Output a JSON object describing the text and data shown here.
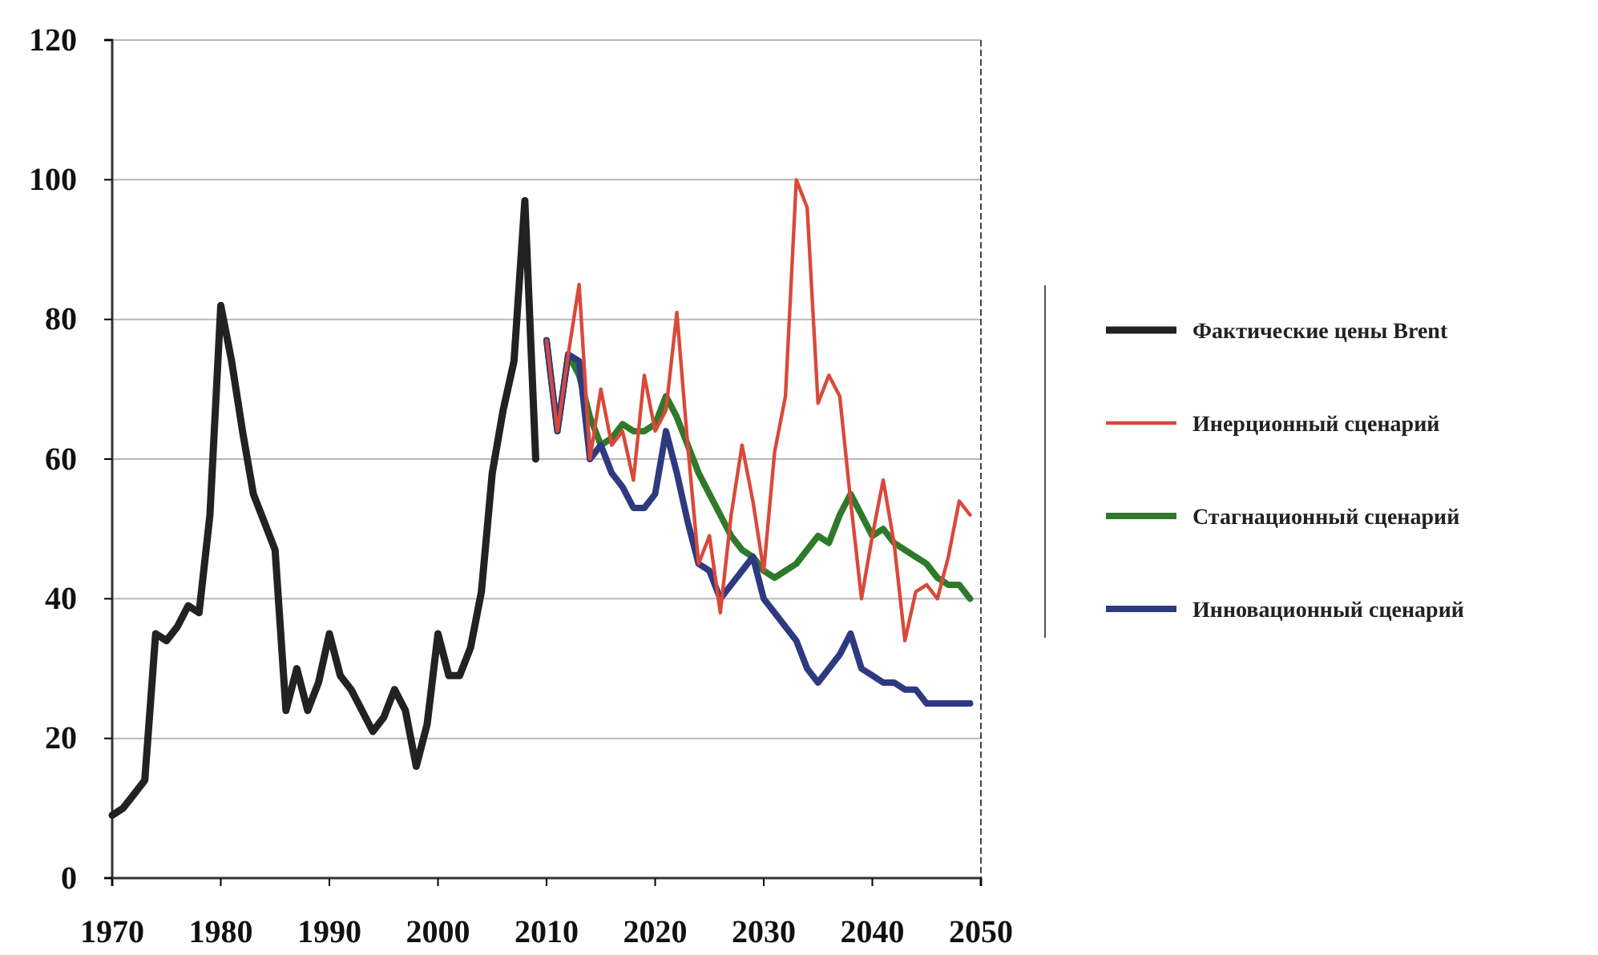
{
  "chart_data": {
    "type": "line",
    "xlim": [
      1970,
      2050
    ],
    "xticks": [
      1970,
      1980,
      1990,
      2000,
      2010,
      2020,
      2030,
      2040,
      2050
    ],
    "ylim": [
      0,
      120
    ],
    "yticks": [
      0,
      20,
      40,
      60,
      80,
      100,
      120
    ],
    "grid": "y",
    "legend": "right",
    "marker": "none",
    "line_style": "solid",
    "series": [
      {
        "name": "Фактические цены Brent",
        "color": "#222222",
        "x": [
          1970,
          1971,
          1972,
          1973,
          1974,
          1975,
          1976,
          1977,
          1978,
          1979,
          1980,
          1981,
          1982,
          1983,
          1984,
          1985,
          1986,
          1987,
          1988,
          1989,
          1990,
          1991,
          1992,
          1993,
          1994,
          1995,
          1996,
          1997,
          1998,
          1999,
          2000,
          2001,
          2002,
          2003,
          2004,
          2005,
          2006,
          2007,
          2008,
          2009
        ],
        "values": [
          9,
          10,
          12,
          14,
          35,
          34,
          36,
          39,
          38,
          52,
          82,
          74,
          64,
          55,
          51,
          47,
          24,
          30,
          24,
          28,
          35,
          29,
          27,
          24,
          21,
          23,
          27,
          24,
          16,
          22,
          35,
          29,
          29,
          33,
          41,
          58,
          67,
          74,
          97,
          60
        ]
      },
      {
        "name": "Инерционный сценарий",
        "color": "#d9493a",
        "x": [
          2010,
          2011,
          2012,
          2013,
          2014,
          2015,
          2016,
          2017,
          2018,
          2019,
          2020,
          2021,
          2022,
          2023,
          2024,
          2025,
          2026,
          2027,
          2028,
          2029,
          2030,
          2031,
          2032,
          2033,
          2034,
          2035,
          2036,
          2037,
          2038,
          2039,
          2040,
          2041,
          2042,
          2043,
          2044,
          2045,
          2046,
          2047,
          2048,
          2049
        ],
        "values": [
          77,
          64,
          75,
          85,
          60,
          70,
          62,
          64,
          57,
          72,
          64,
          67,
          81,
          62,
          45,
          49,
          38,
          52,
          62,
          54,
          44,
          61,
          69,
          100,
          96,
          68,
          72,
          69,
          54,
          40,
          49,
          57,
          48,
          34,
          41,
          42,
          40,
          46,
          54,
          52
        ]
      },
      {
        "name": "Стагнационный сценарий",
        "color": "#2f7a2a",
        "x": [
          2010,
          2011,
          2012,
          2013,
          2014,
          2015,
          2016,
          2017,
          2018,
          2019,
          2020,
          2021,
          2022,
          2023,
          2024,
          2025,
          2026,
          2027,
          2028,
          2029,
          2030,
          2031,
          2032,
          2033,
          2034,
          2035,
          2036,
          2037,
          2038,
          2039,
          2040,
          2041,
          2042,
          2043,
          2044,
          2045,
          2046,
          2047,
          2048,
          2049
        ],
        "values": [
          77,
          64,
          75,
          72,
          66,
          62,
          63,
          65,
          64,
          64,
          65,
          69,
          66,
          62,
          58,
          55,
          52,
          49,
          47,
          46,
          44,
          43,
          44,
          45,
          47,
          49,
          48,
          52,
          55,
          52,
          49,
          50,
          48,
          47,
          46,
          45,
          43,
          42,
          42,
          40
        ]
      },
      {
        "name": "Инновационный сценарий",
        "color": "#2e3a80",
        "x": [
          2010,
          2011,
          2012,
          2013,
          2014,
          2015,
          2016,
          2017,
          2018,
          2019,
          2020,
          2021,
          2022,
          2023,
          2024,
          2025,
          2026,
          2027,
          2028,
          2029,
          2030,
          2031,
          2032,
          2033,
          2034,
          2035,
          2036,
          2037,
          2038,
          2039,
          2040,
          2041,
          2042,
          2043,
          2044,
          2045,
          2046,
          2047,
          2048,
          2049
        ],
        "values": [
          77,
          64,
          75,
          74,
          60,
          62,
          58,
          56,
          53,
          53,
          55,
          64,
          58,
          51,
          45,
          44,
          40,
          42,
          44,
          46,
          40,
          38,
          36,
          34,
          30,
          28,
          30,
          32,
          35,
          30,
          29,
          28,
          28,
          27,
          27,
          25,
          25,
          25,
          25,
          25
        ]
      }
    ]
  }
}
